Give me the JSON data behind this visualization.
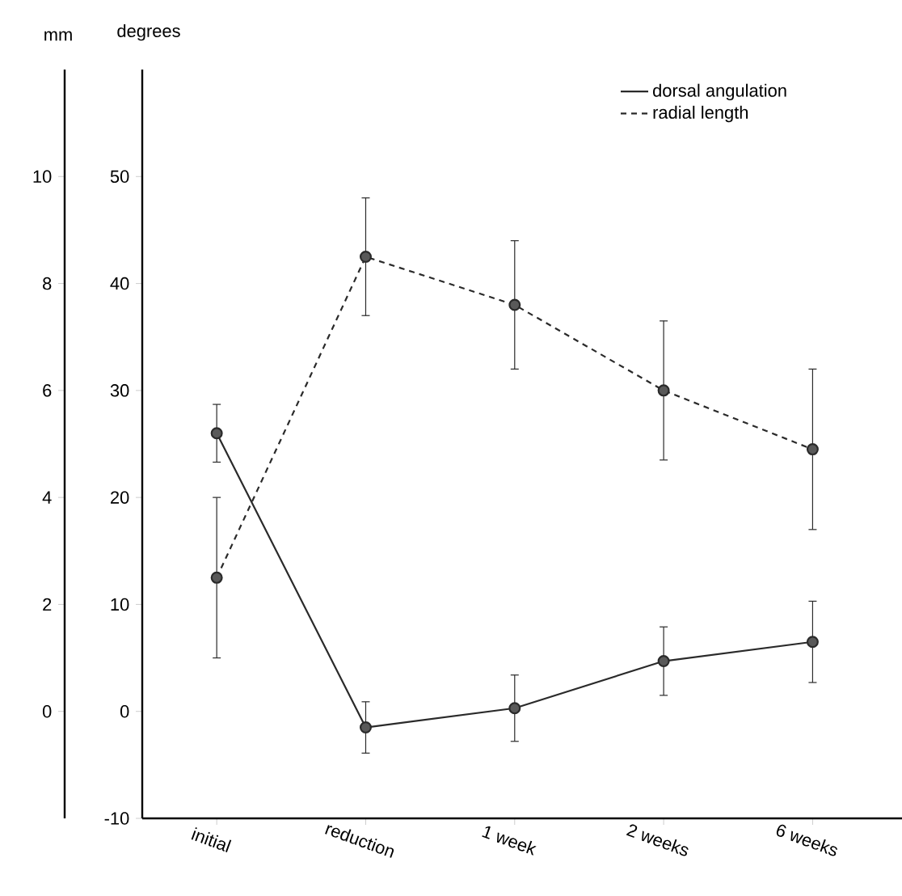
{
  "chart_data": {
    "type": "line",
    "ylabel": "degrees",
    "y2label": "mm",
    "categories": [
      "initial",
      "reduction",
      "1 week",
      "2 weeks",
      "6 weeks"
    ],
    "ylim": [
      -10,
      60
    ],
    "yticks": [
      -10,
      0,
      10,
      20,
      30,
      40,
      50
    ],
    "y2lim": [
      -2,
      12
    ],
    "y2ticks": [
      0,
      2,
      4,
      6,
      8,
      10
    ],
    "marker": "circle",
    "legend": "top right",
    "series": [
      {
        "name": "dorsal angulation",
        "color": "#2a2a2a",
        "line_style": "solid",
        "values": [
          26,
          -1.5,
          0.3,
          4.7,
          6.5
        ],
        "errors": [
          2.7,
          2.4,
          3.1,
          3.2,
          3.8
        ]
      },
      {
        "name": "radial length",
        "color": "#2a2a2a",
        "line_style": "dashed",
        "axis": "y2",
        "values": [
          2.5,
          8.5,
          7.6,
          6.0,
          4.9
        ],
        "errors": [
          1.5,
          1.1,
          1.2,
          1.3,
          1.5
        ]
      }
    ]
  }
}
